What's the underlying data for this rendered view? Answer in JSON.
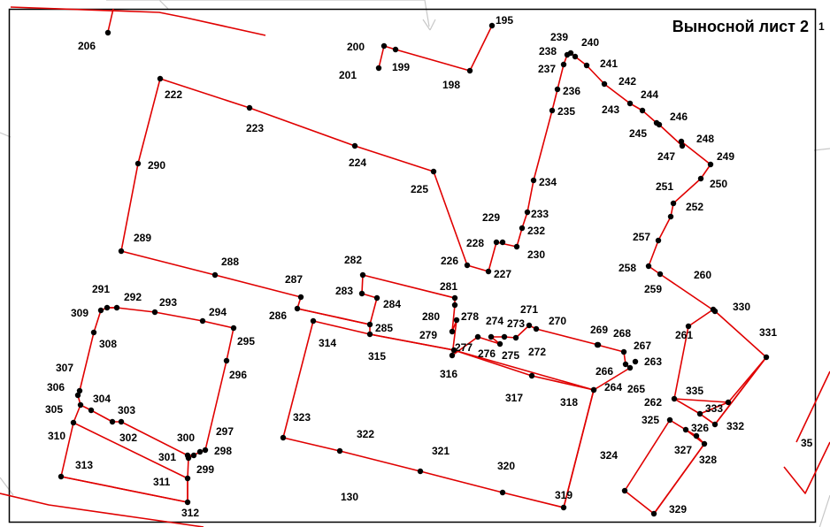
{
  "sheet_title": "Выносной лист 2",
  "colors": {
    "boundary": "#e00000",
    "point": "#000000",
    "frame": "#000000"
  },
  "parcel_number": "130",
  "partial_labels": [
    "1",
    "35"
  ],
  "points": {
    "195": {
      "label": "195"
    },
    "198": {
      "label": "198"
    },
    "199": {
      "label": "199"
    },
    "200": {
      "label": "200"
    },
    "201": {
      "label": "201"
    },
    "206": {
      "label": "206"
    },
    "222": {
      "label": "222"
    },
    "223": {
      "label": "223"
    },
    "224": {
      "label": "224"
    },
    "225": {
      "label": "225"
    },
    "226": {
      "label": "226"
    },
    "227": {
      "label": "227"
    },
    "228": {
      "label": "228"
    },
    "229": {
      "label": "229"
    },
    "230": {
      "label": "230"
    },
    "232": {
      "label": "232"
    },
    "233": {
      "label": "233"
    },
    "234": {
      "label": "234"
    },
    "235": {
      "label": "235"
    },
    "236": {
      "label": "236"
    },
    "237": {
      "label": "237"
    },
    "238": {
      "label": "238"
    },
    "239": {
      "label": "239"
    },
    "240": {
      "label": "240"
    },
    "241": {
      "label": "241"
    },
    "242": {
      "label": "242"
    },
    "243": {
      "label": "243"
    },
    "244": {
      "label": "244"
    },
    "245": {
      "label": "245"
    },
    "246": {
      "label": "246"
    },
    "247": {
      "label": "247"
    },
    "248": {
      "label": "248"
    },
    "249": {
      "label": "249"
    },
    "250": {
      "label": "250"
    },
    "251": {
      "label": "251"
    },
    "252": {
      "label": "252"
    },
    "257": {
      "label": "257"
    },
    "258": {
      "label": "258"
    },
    "259": {
      "label": "259"
    },
    "260": {
      "label": "260"
    },
    "261": {
      "label": "261"
    },
    "262": {
      "label": "262"
    },
    "263": {
      "label": "263"
    },
    "264": {
      "label": "264"
    },
    "265": {
      "label": "265"
    },
    "266": {
      "label": "266"
    },
    "267": {
      "label": "267"
    },
    "268": {
      "label": "268"
    },
    "269": {
      "label": "269"
    },
    "270": {
      "label": "270"
    },
    "271": {
      "label": "271"
    },
    "272": {
      "label": "272"
    },
    "273": {
      "label": "273"
    },
    "274": {
      "label": "274"
    },
    "275": {
      "label": "275"
    },
    "276": {
      "label": "276"
    },
    "277": {
      "label": "277"
    },
    "278": {
      "label": "278"
    },
    "279": {
      "label": "279"
    },
    "280": {
      "label": "280"
    },
    "281": {
      "label": "281"
    },
    "282": {
      "label": "282"
    },
    "283": {
      "label": "283"
    },
    "284": {
      "label": "284"
    },
    "285": {
      "label": "285"
    },
    "286": {
      "label": "286"
    },
    "287": {
      "label": "287"
    },
    "288": {
      "label": "288"
    },
    "289": {
      "label": "289"
    },
    "290": {
      "label": "290"
    },
    "291": {
      "label": "291"
    },
    "292": {
      "label": "292"
    },
    "293": {
      "label": "293"
    },
    "294": {
      "label": "294"
    },
    "295": {
      "label": "295"
    },
    "296": {
      "label": "296"
    },
    "297": {
      "label": "297"
    },
    "298": {
      "label": "298"
    },
    "299": {
      "label": "299"
    },
    "300": {
      "label": "300"
    },
    "301": {
      "label": "301"
    },
    "302": {
      "label": "302"
    },
    "303": {
      "label": "303"
    },
    "304": {
      "label": "304"
    },
    "305": {
      "label": "305"
    },
    "306": {
      "label": "306"
    },
    "307": {
      "label": "307"
    },
    "308": {
      "label": "308"
    },
    "309": {
      "label": "309"
    },
    "310": {
      "label": "310"
    },
    "311": {
      "label": "311"
    },
    "312": {
      "label": "312"
    },
    "313": {
      "label": "313"
    },
    "314": {
      "label": "314"
    },
    "315": {
      "label": "315"
    },
    "316": {
      "label": "316"
    },
    "317": {
      "label": "317"
    },
    "318": {
      "label": "318"
    },
    "319": {
      "label": "319"
    },
    "320": {
      "label": "320"
    },
    "321": {
      "label": "321"
    },
    "322": {
      "label": "322"
    },
    "323": {
      "label": "323"
    },
    "324": {
      "label": "324"
    },
    "325": {
      "label": "325"
    },
    "326": {
      "label": "326"
    },
    "327": {
      "label": "327"
    },
    "328": {
      "label": "328"
    },
    "329": {
      "label": "329"
    },
    "330": {
      "label": "330"
    },
    "331": {
      "label": "331"
    },
    "332": {
      "label": "332"
    },
    "333": {
      "label": "333"
    },
    "335": {
      "label": "335"
    }
  },
  "boundaries": [
    {
      "id": "top-left",
      "points": [
        "206"
      ]
    },
    {
      "id": "top-center",
      "points": [
        "201",
        "200",
        "199",
        "198",
        "195"
      ]
    },
    {
      "id": "upper-block",
      "points": [
        "222",
        "223",
        "224",
        "225",
        "226",
        "227",
        "228",
        "230",
        "232",
        "233",
        "234",
        "235",
        "236",
        "237",
        "238",
        "239",
        "240",
        "241",
        "242",
        "243",
        "244",
        "245",
        "246",
        "247",
        "248",
        "249",
        "250",
        "251",
        "252",
        "257",
        "258",
        "259",
        "260"
      ]
    },
    {
      "id": "west-block",
      "points": [
        "222",
        "290",
        "289",
        "288",
        "287",
        "286",
        "285",
        "284",
        "283",
        "282",
        "281",
        "280",
        "279",
        "278",
        "277",
        "276",
        "275",
        "274",
        "273",
        "272",
        "271",
        "270",
        "269",
        "268",
        "267",
        "266",
        "265",
        "264"
      ]
    },
    {
      "id": "left-square",
      "points": [
        "291",
        "292",
        "293",
        "294",
        "295",
        "296",
        "297",
        "298",
        "299",
        "300",
        "301",
        "302",
        "303",
        "304",
        "305",
        "306",
        "307",
        "308",
        "309"
      ]
    },
    {
      "id": "bottom-left",
      "points": [
        "310",
        "311",
        "312",
        "313"
      ]
    },
    {
      "id": "south-block",
      "points": [
        "314",
        "315",
        "316",
        "317",
        "318",
        "319",
        "320",
        "321",
        "322",
        "323"
      ]
    },
    {
      "id": "east-strip",
      "points": [
        "330",
        "331",
        "332",
        "333",
        "335"
      ]
    },
    {
      "id": "east-small",
      "points": [
        "325",
        "326",
        "327",
        "328",
        "329",
        "324"
      ]
    }
  ]
}
